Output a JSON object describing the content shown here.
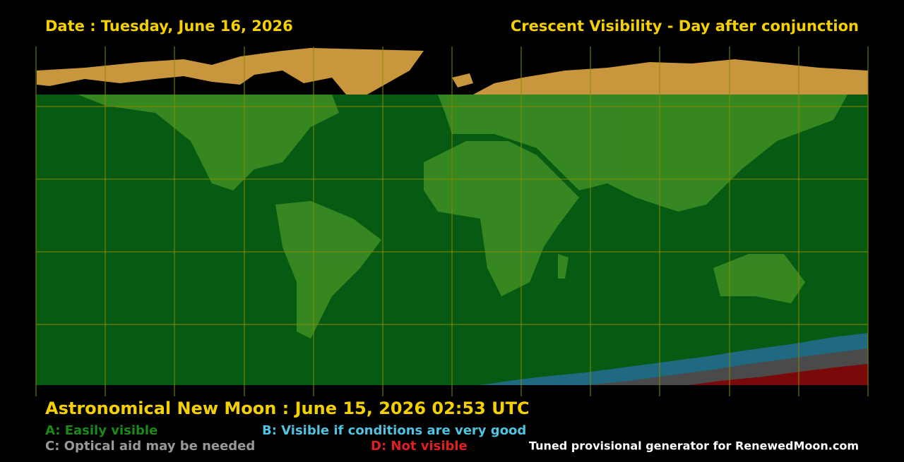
{
  "header": {
    "date": "Date : Tuesday, June 16, 2026",
    "title": "Crescent Visibility - Day after conjunction"
  },
  "footer": {
    "new_moon": "Astronomical New Moon : June 15, 2026 02:53 UTC",
    "legend": {
      "a": "A: Easily visible",
      "b": "B: Visible if conditions are very good",
      "c": "C: Optical aid may be needed",
      "d": "D: Not visible"
    },
    "credit": "Tuned provisional generator for RenewedMoon.com"
  }
}
